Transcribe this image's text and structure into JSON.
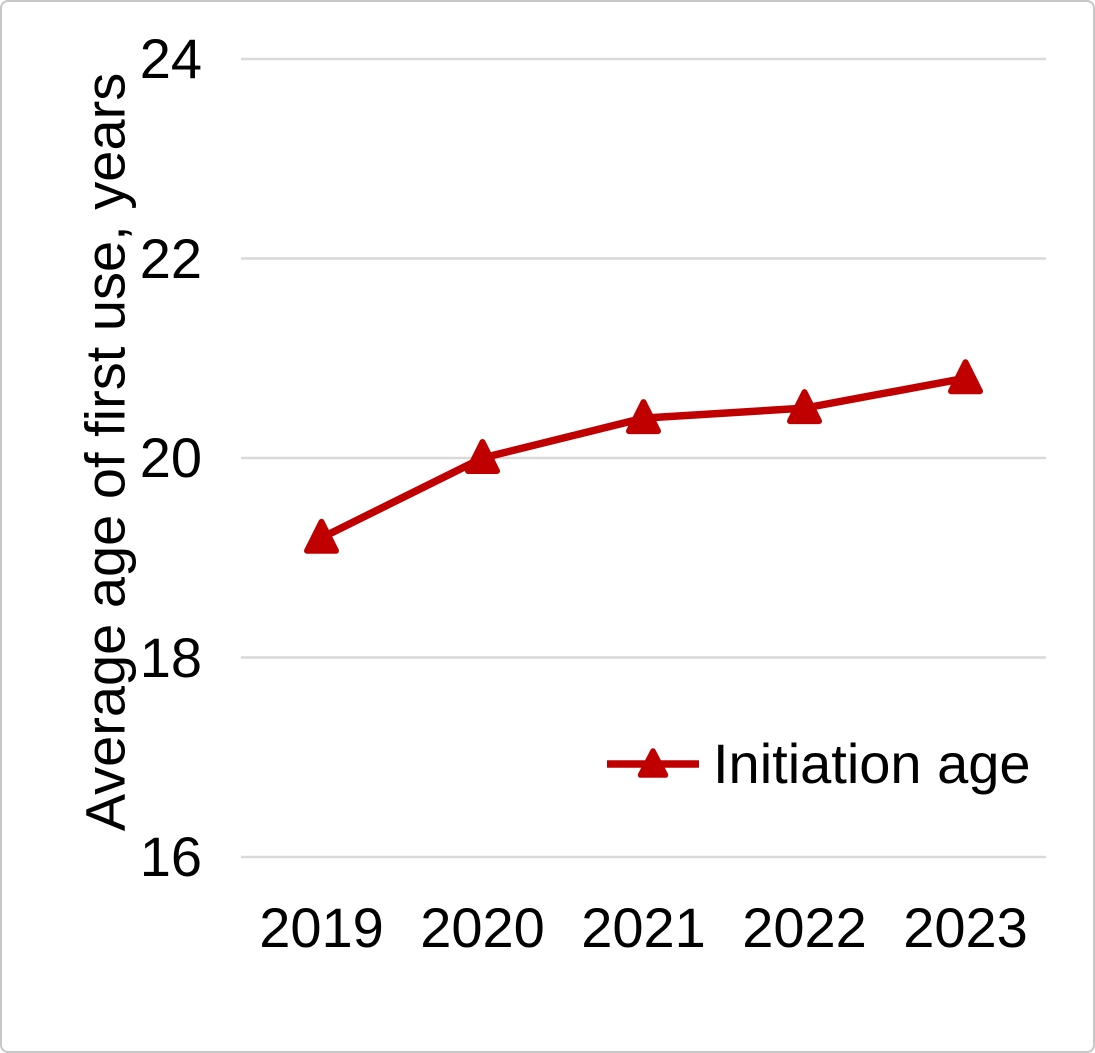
{
  "chart_data": {
    "type": "line",
    "categories": [
      "2019",
      "2020",
      "2021",
      "2022",
      "2023"
    ],
    "series": [
      {
        "name": "Initiation age",
        "values": [
          19.2,
          20.0,
          20.4,
          20.5,
          20.8
        ]
      }
    ],
    "title": "",
    "xlabel": "",
    "ylabel": "Average age of first use, years",
    "ylim": [
      16,
      24
    ],
    "yticks": [
      16,
      18,
      20,
      22,
      24
    ],
    "grid": "horizontal",
    "legend_position": "inside-bottom-right",
    "marker": "triangle-up",
    "colors": {
      "series": "#c00000",
      "gridline": "#d9d9d9",
      "text": "#000000",
      "border": "#c7c7c7",
      "background": "#ffffff"
    }
  }
}
